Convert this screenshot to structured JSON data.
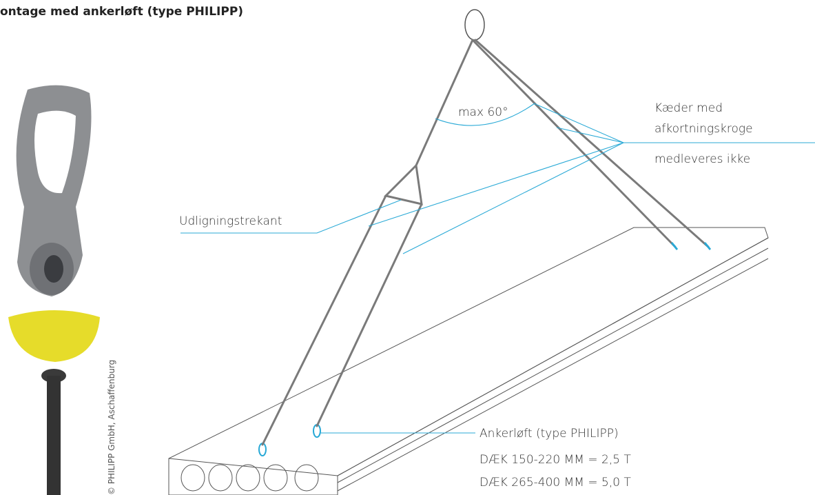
{
  "header": {
    "title": "ontage med ankerløft (type PHILIPP)"
  },
  "labels": {
    "angle": "max 60°",
    "chains_line1": "Kæder med",
    "chains_line2": "afkortningskroge",
    "chains_note": "medleveres ikke",
    "triangle": "Udligningstrekant",
    "anchor": "Ankerløft (type PHILIPP)",
    "deck1": "DÆK 150-220 MM = 2,5 T",
    "deck2": "DÆK 265-400 MM = 5,0 T",
    "copyright": "© PHILIPP GmbH, Aschaffenburg"
  }
}
